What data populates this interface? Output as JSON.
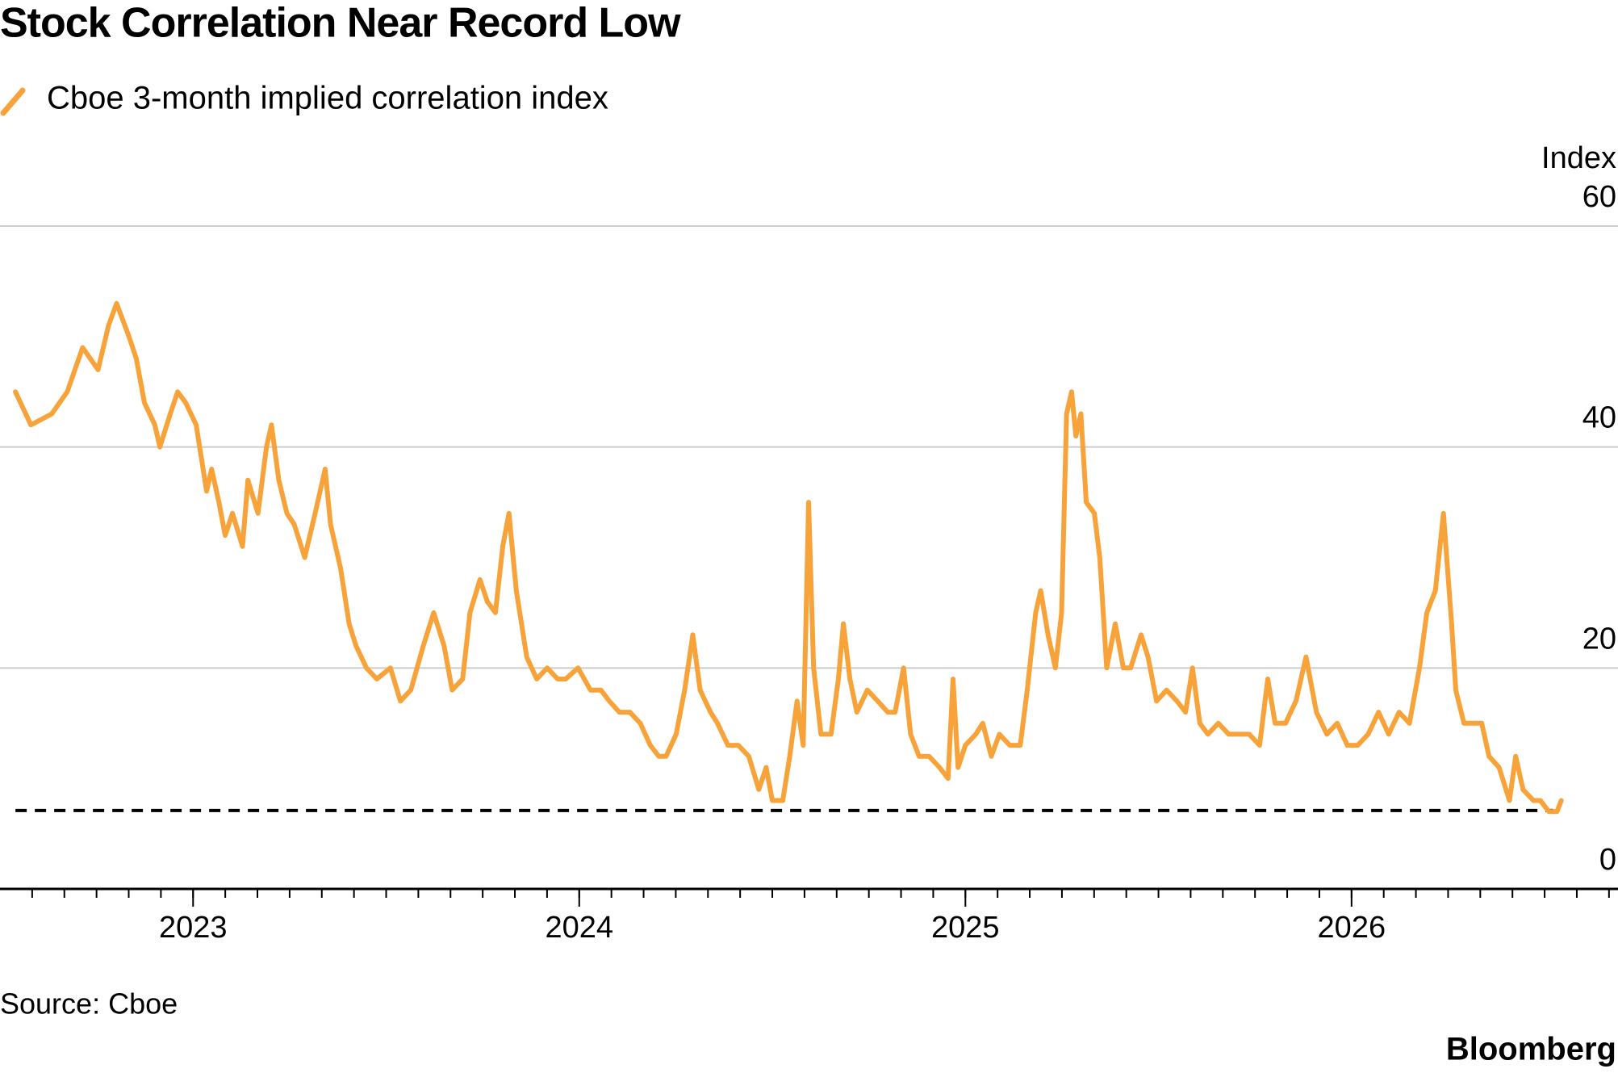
{
  "chart_data": {
    "type": "line",
    "title": "Stock Correlation Near Record Low",
    "y_label": "Index",
    "source": "Source: Cboe",
    "brand": "Bloomberg",
    "xlim": [
      2022.5,
      2026.69
    ],
    "xticks": [
      2023,
      2024,
      2025,
      2026
    ],
    "ylim": [
      0,
      60
    ],
    "yticks": [
      0,
      20,
      40,
      60
    ],
    "grid": true,
    "reference_line": {
      "value": 7.1,
      "style": "dashed",
      "color": "#000000"
    },
    "x": [
      2022.54,
      2022.58,
      2022.634,
      2022.674,
      2022.714,
      2022.754,
      2022.781,
      2022.802,
      2022.834,
      2022.853,
      2022.874,
      2022.901,
      2022.914,
      2022.941,
      2022.96,
      2022.981,
      2023.008,
      2023.035,
      2023.048,
      2023.067,
      2023.083,
      2023.102,
      2023.128,
      2023.142,
      2023.168,
      2023.19,
      2023.203,
      2023.222,
      2023.243,
      2023.262,
      2023.289,
      2023.316,
      2023.342,
      2023.356,
      2023.382,
      2023.404,
      2023.422,
      2023.449,
      2023.476,
      2023.511,
      2023.537,
      2023.564,
      2023.596,
      2023.623,
      2023.65,
      2023.671,
      2023.698,
      2023.717,
      2023.743,
      2023.762,
      2023.783,
      2023.802,
      2023.818,
      2023.837,
      2023.864,
      2023.89,
      2023.917,
      2023.944,
      2023.965,
      2023.997,
      2024.029,
      2024.056,
      2024.078,
      2024.104,
      2024.131,
      2024.158,
      2024.184,
      2024.206,
      2024.225,
      2024.251,
      2024.273,
      2024.294,
      2024.313,
      2024.34,
      2024.358,
      2024.385,
      2024.412,
      2024.439,
      2024.465,
      2024.484,
      2024.5,
      2024.527,
      2024.545,
      2024.564,
      2024.58,
      2024.594,
      2024.607,
      2024.626,
      2024.652,
      2024.671,
      2024.684,
      2024.701,
      2024.719,
      2024.746,
      2024.773,
      2024.799,
      2024.818,
      2024.84,
      2024.858,
      2024.88,
      2024.906,
      2024.933,
      2024.955,
      2024.968,
      2024.981,
      2025.0,
      2025.027,
      2025.045,
      2025.067,
      2025.088,
      2025.115,
      2025.142,
      2025.16,
      2025.182,
      2025.195,
      2025.214,
      2025.233,
      2025.249,
      2025.262,
      2025.275,
      2025.286,
      2025.299,
      2025.313,
      2025.334,
      2025.348,
      2025.366,
      2025.388,
      2025.409,
      2025.428,
      2025.455,
      2025.473,
      2025.495,
      2025.521,
      2025.548,
      2025.57,
      2025.588,
      2025.607,
      2025.628,
      2025.655,
      2025.682,
      2025.709,
      2025.735,
      2025.762,
      2025.783,
      2025.802,
      2025.829,
      2025.856,
      2025.882,
      2025.909,
      2025.936,
      2025.963,
      2025.989,
      2026.016,
      2026.043,
      2026.07,
      2026.096,
      2026.123,
      2026.15,
      2026.176,
      2026.195,
      2026.217,
      2026.238,
      2026.259,
      2026.27,
      2026.291,
      2026.31,
      2026.337,
      2026.356,
      2026.382,
      2026.409,
      2026.425,
      2026.444,
      2026.471,
      2026.489,
      2026.511,
      2026.532,
      2026.543
    ],
    "series": [
      {
        "name": "Cboe 3-month implied correlation index",
        "color": "#f7a33a",
        "values": [
          45,
          42,
          43,
          45,
          49,
          47,
          51,
          53,
          50,
          48,
          44,
          42,
          40,
          43,
          45,
          44,
          42,
          36,
          38,
          35,
          32,
          34,
          31,
          37,
          34,
          40,
          42,
          37,
          34,
          33,
          30,
          34,
          38,
          33,
          29,
          24,
          22,
          20,
          19,
          20,
          17,
          18,
          22,
          25,
          22,
          18,
          19,
          25,
          28,
          26,
          25,
          31,
          34,
          27,
          21,
          19,
          20,
          19,
          19,
          20,
          18,
          18,
          17,
          16,
          16,
          15,
          13,
          12,
          12,
          14,
          18,
          23,
          18,
          16,
          15,
          13,
          13,
          12,
          9,
          11,
          8,
          8,
          12,
          17,
          13,
          35,
          20,
          14,
          14,
          19,
          24,
          19,
          16,
          18,
          17,
          16,
          16,
          20,
          14,
          12,
          12,
          11,
          10,
          19,
          11,
          13,
          14,
          15,
          12,
          14,
          13,
          13,
          18,
          25,
          27,
          23,
          20,
          25,
          43,
          45,
          41,
          43,
          35,
          34,
          30,
          20,
          24,
          20,
          20,
          23,
          21,
          17,
          18,
          17,
          16,
          20,
          15,
          14,
          15,
          14,
          14,
          14,
          13,
          19,
          15,
          15,
          17,
          21,
          16,
          14,
          15,
          13,
          13,
          14,
          16,
          14,
          16,
          15,
          20,
          25,
          27,
          34,
          24,
          18,
          15,
          15,
          15,
          12,
          11,
          8,
          12,
          9,
          8,
          8,
          7,
          7,
          8
        ]
      }
    ]
  }
}
